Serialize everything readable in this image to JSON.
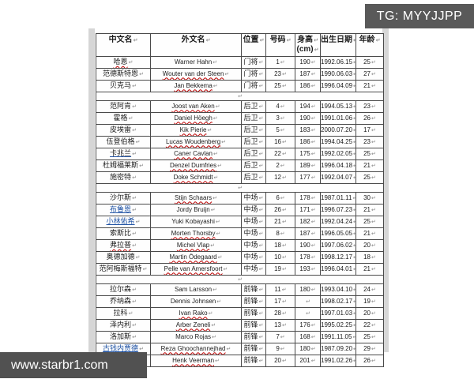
{
  "watermarks": {
    "tg_label": "TG: MYYJJPP",
    "site_url": "www.starbr1.com"
  },
  "colors": {
    "banner_bg": "#595959",
    "footer_bg": "#515151",
    "link": "#2053a4",
    "spellcheck_red": "#c00000",
    "table_border": "#4a4a4a",
    "page_edge_strip": "#d6d6d6"
  },
  "formatting_mark": "↵",
  "table": {
    "headers": [
      {
        "label": "中文名"
      },
      {
        "label": "外文名"
      },
      {
        "label": "位置"
      },
      {
        "label": "号码"
      },
      {
        "label": "身高",
        "sub": "(cm)"
      },
      {
        "label": "出生日期"
      },
      {
        "label": "年龄"
      }
    ],
    "sections": [
      {
        "position_group": "goalkeepers",
        "rows": [
          {
            "cn": "哈恩",
            "cn_style": "wavy",
            "en": "Warner Hahn",
            "en_style": "plain",
            "pos": "门将",
            "no": "1",
            "height": "190",
            "dob": "1992.06.15",
            "age": "25"
          },
          {
            "cn": "范德斯特恩",
            "cn_style": "plain",
            "en": "Wouter van der Steen",
            "en_style": "wavy",
            "pos": "门将",
            "no": "23",
            "height": "187",
            "dob": "1990.06.03",
            "age": "27"
          },
          {
            "cn": "贝克马",
            "cn_style": "plain",
            "en": "Jan Bekkema",
            "en_style": "wavy",
            "pos": "门将",
            "no": "25",
            "height": "186",
            "dob": "1996.04.09",
            "age": "21"
          }
        ]
      },
      {
        "position_group": "defenders",
        "rows": [
          {
            "cn": "范阿肯",
            "cn_style": "plain",
            "en": "Joost van Aken",
            "en_style": "wavy",
            "pos": "后卫",
            "no": "4",
            "height": "194",
            "dob": "1994.05.13",
            "age": "23"
          },
          {
            "cn": "霍格",
            "cn_style": "plain",
            "en": "Daniel Höegh",
            "en_style": "wavy",
            "pos": "后卫",
            "no": "3",
            "height": "190",
            "dob": "1991.01.06",
            "age": "26"
          },
          {
            "cn": "皮埃雷",
            "cn_style": "plain",
            "en": "Kik Pierie",
            "en_style": "wavy",
            "pos": "后卫",
            "no": "5",
            "height": "183",
            "dob": "2000.07.20",
            "age": "17"
          },
          {
            "cn": "伍登伯格",
            "cn_style": "plain",
            "en": "Lucas Woudenberg",
            "en_style": "wavy",
            "pos": "后卫",
            "no": "16",
            "height": "186",
            "dob": "1994.04.25",
            "age": "23"
          },
          {
            "cn": "卡兆兰",
            "cn_style": "u",
            "en": "Caner Cavlan",
            "en_style": "wavy",
            "pos": "后卫",
            "no": "22",
            "height": "175",
            "dob": "1992.02.05",
            "age": "25"
          },
          {
            "cn": "杜姆福莱斯",
            "cn_style": "plain",
            "en": "Denzel Dumfries",
            "en_style": "wavy",
            "pos": "后卫",
            "no": "2",
            "height": "189",
            "dob": "1996.04.18",
            "age": "21"
          },
          {
            "cn": "施密特",
            "cn_style": "plain",
            "en": "Doke Schmidt",
            "en_style": "wavy",
            "pos": "后卫",
            "no": "12",
            "height": "177",
            "dob": "1992.04.07",
            "age": "25"
          }
        ]
      },
      {
        "position_group": "midfielders",
        "rows": [
          {
            "cn": "沙尔斯",
            "cn_style": "plain",
            "en": "Stijn Schaars",
            "en_style": "wavy",
            "pos": "中场",
            "no": "6",
            "height": "178",
            "dob": "1987.01.11",
            "age": "30"
          },
          {
            "cn": "布鲁恩",
            "cn_style": "link",
            "en": "Jordy Bruijn",
            "en_style": "plain",
            "pos": "中场",
            "no": "26",
            "height": "171",
            "dob": "1996.07.23",
            "age": "21"
          },
          {
            "cn": "小林佑希",
            "cn_style": "link",
            "en": "Yuki Kobayashi",
            "en_style": "plain",
            "pos": "中场",
            "no": "21",
            "height": "182",
            "dob": "1992.04.24",
            "age": "25"
          },
          {
            "cn": "索斯比",
            "cn_style": "plain",
            "en": "Morten Thorsby",
            "en_style": "wavy",
            "pos": "中场",
            "no": "8",
            "height": "187",
            "dob": "1996.05.05",
            "age": "21"
          },
          {
            "cn": "弗拉普",
            "cn_style": "wavy",
            "en": "Michel Vlap",
            "en_style": "wavy",
            "pos": "中场",
            "no": "18",
            "height": "190",
            "dob": "1997.06.02",
            "age": "20"
          },
          {
            "cn": "奥德加德",
            "cn_style": "plain",
            "en": "Martin Ödegaard",
            "en_style": "wavy",
            "pos": "中场",
            "no": "10",
            "height": "178",
            "dob": "1998.12.17",
            "age": "18"
          },
          {
            "cn": "范阿梅斯福特",
            "cn_style": "plain",
            "en": "Pelle van Amersfoort",
            "en_style": "wavy",
            "pos": "中场",
            "no": "19",
            "height": "193",
            "dob": "1996.04.01",
            "age": "21"
          }
        ]
      },
      {
        "position_group": "forwards",
        "rows": [
          {
            "cn": "拉尔森",
            "cn_style": "plain",
            "en": "Sam Larsson",
            "en_style": "plain",
            "pos": "前锋",
            "no": "11",
            "height": "180",
            "dob": "1993.04.10",
            "age": "24"
          },
          {
            "cn": "乔纳森",
            "cn_style": "plain",
            "en": "Dennis Johnsen",
            "en_style": "plain",
            "pos": "前锋",
            "no": "17",
            "height": "",
            "dob": "1998.02.17",
            "age": "19"
          },
          {
            "cn": "拉科",
            "cn_style": "plain",
            "en": "Ivan Rako",
            "en_style": "wavy",
            "pos": "前锋",
            "no": "28",
            "height": "",
            "dob": "1997.01.03",
            "age": "20"
          },
          {
            "cn": "泽内利",
            "cn_style": "plain",
            "en": "Arber Zeneli",
            "en_style": "wavy",
            "pos": "前锋",
            "no": "13",
            "height": "176",
            "dob": "1995.02.25",
            "age": "22"
          },
          {
            "cn": "洛加斯",
            "cn_style": "plain",
            "en": "Marco Rojas",
            "en_style": "plain",
            "pos": "前锋",
            "no": "7",
            "height": "168",
            "dob": "1991.11.05",
            "age": "25"
          },
          {
            "cn": "古钱内贾德",
            "cn_style": "link",
            "en": "Reza Ghoochannejhad",
            "en_style": "wavy",
            "pos": "前锋",
            "no": "9",
            "height": "180",
            "dob": "1987.09.20",
            "age": "29"
          },
          {
            "cn": "福尔曼",
            "cn_style": "plain",
            "en": "Henk Veerman",
            "en_style": "wavy",
            "pos": "前锋",
            "no": "20",
            "height": "201",
            "dob": "1991.02.26",
            "age": "26"
          }
        ]
      }
    ]
  }
}
